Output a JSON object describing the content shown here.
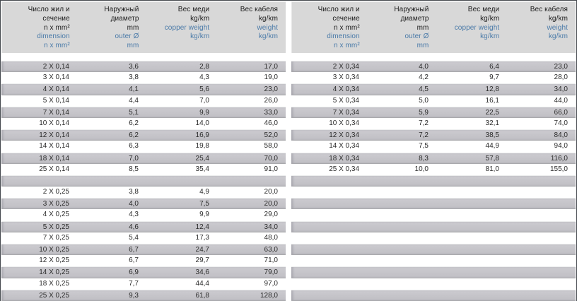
{
  "colors": {
    "accent_blue": "#4a7aa8",
    "header_bg": "#d8d8d8",
    "row_gray": "#c5c5c9",
    "frame_border": "#43474c"
  },
  "header_columns": [
    {
      "key": "dimension",
      "lines": [
        {
          "t": "Число жил и",
          "blue": false
        },
        {
          "t": "сечение",
          "blue": false
        },
        {
          "t": "n x mm²",
          "blue": false
        },
        {
          "t": "dimension",
          "blue": true
        },
        {
          "t": "n x mm²",
          "blue": true
        }
      ]
    },
    {
      "key": "outer-diameter",
      "lines": [
        {
          "t": "Наружный",
          "blue": false
        },
        {
          "t": "диаметр",
          "blue": false
        },
        {
          "t": "mm",
          "blue": false
        },
        {
          "t": "outer Ø",
          "blue": true
        },
        {
          "t": "mm",
          "blue": true
        }
      ]
    },
    {
      "key": "copper-weight",
      "lines": [
        {
          "t": "Вес меди",
          "blue": false
        },
        {
          "t": "kg/km",
          "blue": false
        },
        {
          "t": "copper weight",
          "blue": true
        },
        {
          "t": "kg/km",
          "blue": true
        }
      ]
    },
    {
      "key": "cable-weight",
      "lines": [
        {
          "t": "Вес кабеля",
          "blue": false
        },
        {
          "t": "kg/km",
          "blue": false
        },
        {
          "t": "weight",
          "blue": true
        },
        {
          "t": "kg/km",
          "blue": true
        }
      ]
    }
  ],
  "tables": [
    {
      "name": "left",
      "rows": [
        [
          "2 X 0,14",
          "3,6",
          "2,8",
          "17,0"
        ],
        [
          "3 X 0,14",
          "3,8",
          "4,3",
          "19,0"
        ],
        [
          "4 X 0,14",
          "4,1",
          "5,6",
          "23,0"
        ],
        [
          "5 X 0,14",
          "4,4",
          "7,0",
          "26,0"
        ],
        [
          "7 X 0,14",
          "5,1",
          "9,9",
          "33,0"
        ],
        [
          "10 X 0,14",
          "6,2",
          "14,0",
          "46,0"
        ],
        [
          "12 X 0,14",
          "6,2",
          "16,9",
          "52,0"
        ],
        [
          "14 X 0,14",
          "6,3",
          "19,8",
          "58,0"
        ],
        [
          "18 X 0,14",
          "7,0",
          "25,4",
          "70,0"
        ],
        [
          "25 X 0,14",
          "8,5",
          "35,4",
          "91,0"
        ],
        [
          "",
          "",
          "",
          ""
        ],
        [
          "2 X 0,25",
          "3,8",
          "4,9",
          "20,0"
        ],
        [
          "3 X 0,25",
          "4,0",
          "7,5",
          "20,0"
        ],
        [
          "4 X 0,25",
          "4,3",
          "9,9",
          "29,0"
        ],
        [
          "5 X 0,25",
          "4,6",
          "12,4",
          "34,0"
        ],
        [
          "7 X 0,25",
          "5,4",
          "17,3",
          "48,0"
        ],
        [
          "10 X 0,25",
          "6,7",
          "24,7",
          "63,0"
        ],
        [
          "12 X 0,25",
          "6,7",
          "29,7",
          "71,0"
        ],
        [
          "14 X 0,25",
          "6,9",
          "34,6",
          "79,0"
        ],
        [
          "18 X 0,25",
          "7,7",
          "44,4",
          "97,0"
        ],
        [
          "25 X 0,25",
          "9,3",
          "61,8",
          "128,0"
        ]
      ]
    },
    {
      "name": "right",
      "rows": [
        [
          "2 X 0,34",
          "4,0",
          "6,4",
          "23,0"
        ],
        [
          "3 X 0,34",
          "4,2",
          "9,7",
          "28,0"
        ],
        [
          "4 X 0,34",
          "4,5",
          "12,8",
          "34,0"
        ],
        [
          "5 X 0,34",
          "5,0",
          "16,1",
          "44,0"
        ],
        [
          "7 X 0,34",
          "5,9",
          "22,5",
          "66,0"
        ],
        [
          "10 X 0,34",
          "7,2",
          "32,1",
          "74,0"
        ],
        [
          "12 X 0,34",
          "7,2",
          "38,5",
          "84,0"
        ],
        [
          "14 X 0,34",
          "7,5",
          "44,9",
          "94,0"
        ],
        [
          "18 X 0,34",
          "8,3",
          "57,8",
          "116,0"
        ],
        [
          "25 X 0,34",
          "10,0",
          "81,0",
          "155,0"
        ],
        [
          "",
          "",
          "",
          ""
        ],
        [
          "",
          "",
          "",
          ""
        ],
        [
          "",
          "",
          "",
          ""
        ],
        [
          "",
          "",
          "",
          ""
        ],
        [
          "",
          "",
          "",
          ""
        ],
        [
          "",
          "",
          "",
          ""
        ],
        [
          "",
          "",
          "",
          ""
        ],
        [
          "",
          "",
          "",
          ""
        ],
        [
          "",
          "",
          "",
          ""
        ],
        [
          "",
          "",
          "",
          ""
        ],
        [
          "",
          "",
          "",
          ""
        ]
      ]
    }
  ]
}
